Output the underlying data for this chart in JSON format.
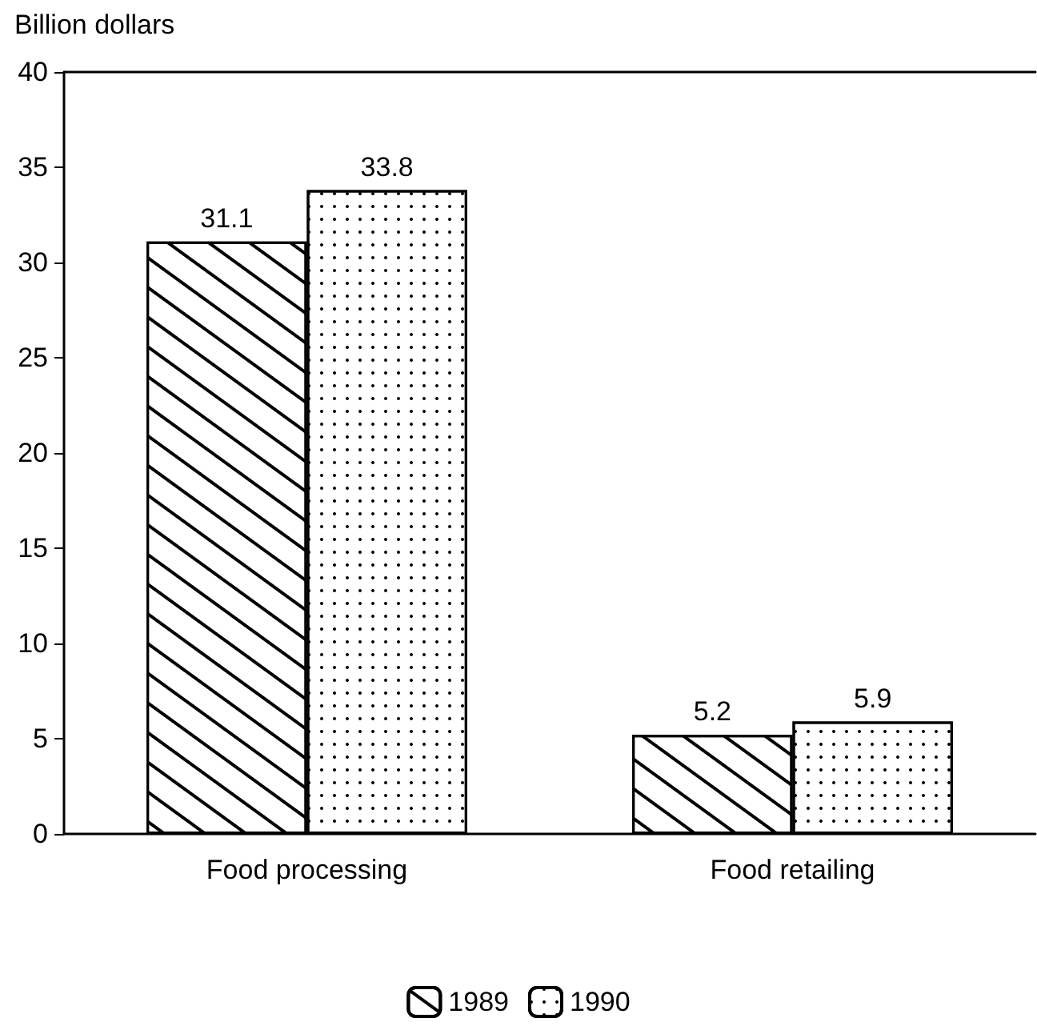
{
  "chart_data": {
    "type": "bar",
    "ylabel": "Billion dollars",
    "categories": [
      "Food processing",
      "Food retailing"
    ],
    "series": [
      {
        "name": "1989",
        "color": "#ffffff",
        "values": [
          31.1,
          5.2
        ]
      },
      {
        "name": "1990",
        "color": "#ffffff",
        "values": [
          33.8,
          5.9
        ]
      }
    ],
    "ylim": [
      0,
      40
    ],
    "yticks": [
      0,
      5,
      10,
      15,
      20,
      25,
      30,
      35,
      40
    ],
    "data_labels": true,
    "grid": false,
    "legend": "bottom"
  }
}
